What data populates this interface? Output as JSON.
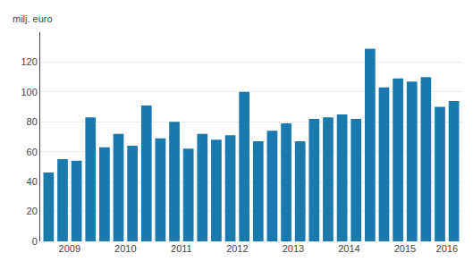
{
  "chart_data": {
    "type": "bar",
    "ylabel": "milj. euro",
    "categories": [
      null,
      "2009",
      null,
      null,
      null,
      "2010",
      null,
      null,
      null,
      "2011",
      null,
      null,
      null,
      "2012",
      null,
      null,
      null,
      "2013",
      null,
      null,
      null,
      "2014",
      null,
      null,
      null,
      "2015",
      null,
      null,
      "2016",
      null
    ],
    "values": [
      46,
      55,
      54,
      83,
      63,
      72,
      64,
      91,
      69,
      80,
      62,
      72,
      68,
      71,
      100,
      67,
      74,
      79,
      67,
      82,
      83,
      85,
      82,
      129,
      103,
      109,
      107,
      110,
      90,
      94
    ],
    "color": "#1a7aad",
    "ylim": [
      0,
      140
    ],
    "yticks": [
      0,
      20,
      40,
      60,
      80,
      100,
      120
    ],
    "grid": true
  }
}
